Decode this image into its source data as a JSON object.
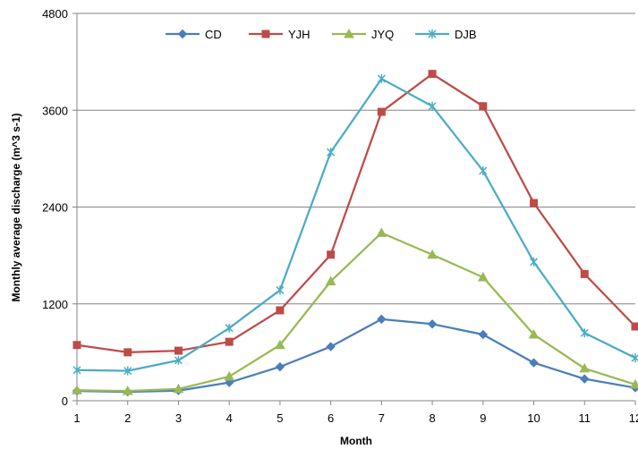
{
  "chart_data": {
    "type": "line",
    "title": "",
    "xlabel": "Month",
    "ylabel": "Monthly average discharge  (m^3 s-1)",
    "x": [
      1,
      2,
      3,
      4,
      5,
      6,
      7,
      8,
      9,
      10,
      11,
      12
    ],
    "x_tick_labels": [
      "1",
      "2",
      "3",
      "4",
      "5",
      "6",
      "7",
      "8",
      "9",
      "10",
      "11",
      "12"
    ],
    "xlim": [
      1,
      12
    ],
    "ylim": [
      0,
      4800
    ],
    "y_ticks": [
      0,
      1200,
      2400,
      3600,
      4800
    ],
    "y_tick_labels": [
      "0",
      "1200",
      "2400",
      "3600",
      "4800"
    ],
    "grid": "horizontal",
    "legend_position": "top",
    "series": [
      {
        "name": "CD",
        "color": "#4a7ebb",
        "marker": "diamond",
        "values": [
          120,
          110,
          125,
          225,
          420,
          670,
          1010,
          950,
          820,
          470,
          270,
          160
        ]
      },
      {
        "name": "YJH",
        "color": "#be4b48",
        "marker": "square",
        "values": [
          690,
          600,
          620,
          730,
          1120,
          1810,
          3580,
          4050,
          3650,
          2450,
          1570,
          920
        ]
      },
      {
        "name": "JYQ",
        "color": "#98b954",
        "marker": "triangle",
        "values": [
          130,
          120,
          145,
          300,
          690,
          1480,
          2080,
          1810,
          1530,
          820,
          400,
          200
        ]
      },
      {
        "name": "DJB",
        "color": "#4bacc6",
        "marker": "star",
        "values": [
          380,
          370,
          500,
          900,
          1370,
          3080,
          3990,
          3650,
          2850,
          1720,
          840,
          530
        ]
      }
    ]
  }
}
